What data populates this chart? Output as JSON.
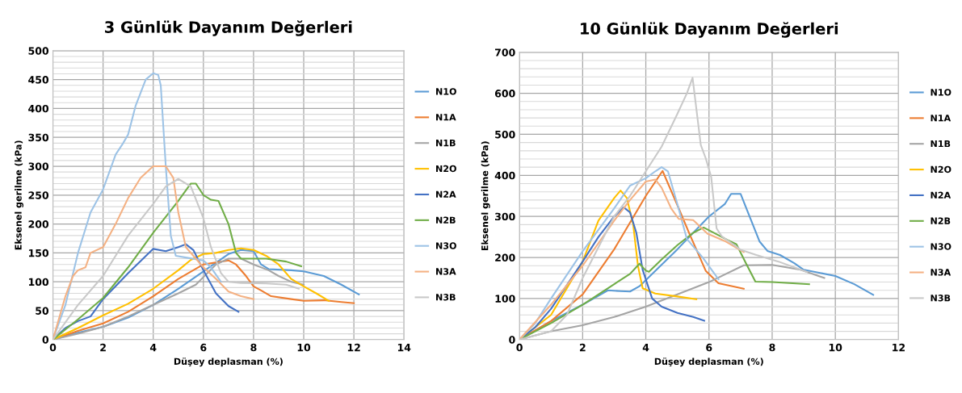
{
  "chart_data": [
    {
      "type": "line",
      "title": "3 Günlük Dayanım Değerleri",
      "xlabel": "Düşey deplasman (%)",
      "ylabel": "Eksenel gerilme (kPa)",
      "xlim": [
        0,
        14
      ],
      "ylim": [
        0,
        500
      ],
      "xticks": [
        0,
        2,
        4,
        6,
        8,
        10,
        12,
        14
      ],
      "yticks": [
        0,
        50,
        100,
        150,
        200,
        250,
        300,
        350,
        400,
        450,
        500
      ],
      "grid": true,
      "legend": "right",
      "marker": "none",
      "line_style": "solid",
      "series": [
        {
          "name": "N1O",
          "color": "#5b9bd5",
          "x": [
            0,
            1,
            2,
            3,
            4,
            5,
            6,
            7,
            7.5,
            8,
            8.3,
            8.6,
            9.5,
            10,
            10.8,
            11.5,
            12.2
          ],
          "values": [
            0,
            12,
            22,
            38,
            60,
            88,
            118,
            148,
            155,
            153,
            130,
            122,
            120,
            118,
            110,
            95,
            78
          ]
        },
        {
          "name": "N1A",
          "color": "#ed7d31",
          "x": [
            0,
            1,
            2,
            3,
            4,
            5,
            6,
            7,
            7.3,
            7.7,
            8,
            8.3,
            8.7,
            9.5,
            10,
            10.8,
            11.5,
            12
          ],
          "values": [
            0,
            15,
            28,
            48,
            75,
            105,
            130,
            137,
            130,
            110,
            92,
            85,
            75,
            70,
            67,
            68,
            65,
            63
          ]
        },
        {
          "name": "N1B",
          "color": "#a5a5a5",
          "x": [
            0,
            1,
            2,
            3,
            4,
            5,
            5.7,
            6.5,
            7,
            7.5,
            8,
            8.6,
            9,
            9.5,
            10
          ],
          "values": [
            0,
            10,
            22,
            40,
            60,
            80,
            95,
            130,
            140,
            140,
            130,
            120,
            110,
            100,
            95
          ]
        },
        {
          "name": "N2O",
          "color": "#ffc000",
          "x": [
            0,
            1,
            2,
            3,
            4,
            5,
            5.5,
            6,
            6.5,
            7,
            7.5,
            8,
            8.5,
            9,
            9.5,
            10,
            10.5,
            11
          ],
          "values": [
            0,
            20,
            42,
            62,
            88,
            120,
            138,
            148,
            150,
            155,
            158,
            155,
            145,
            130,
            105,
            92,
            80,
            67
          ]
        },
        {
          "name": "N2A",
          "color": "#4472c4",
          "x": [
            0,
            0.5,
            1,
            1.5,
            2,
            3,
            4,
            4.5,
            5,
            5.3,
            5.6,
            6,
            6.5,
            7,
            7.4
          ],
          "values": [
            0,
            20,
            32,
            40,
            70,
            115,
            157,
            153,
            160,
            165,
            155,
            120,
            80,
            58,
            48
          ]
        },
        {
          "name": "N2B",
          "color": "#70ad47",
          "x": [
            0,
            1,
            2,
            3,
            4,
            5,
            5.5,
            5.7,
            6,
            6.3,
            6.6,
            7,
            7.3,
            7.5,
            8.5,
            9.3,
            9.9
          ],
          "values": [
            0,
            35,
            72,
            125,
            185,
            240,
            270,
            270,
            250,
            242,
            240,
            200,
            150,
            140,
            140,
            135,
            127
          ]
        },
        {
          "name": "N3O",
          "color": "#9dc3e6",
          "x": [
            0,
            0.5,
            1,
            1.5,
            2,
            2.5,
            2.8,
            3,
            3.3,
            3.7,
            4,
            4.2,
            4.3,
            4.5,
            4.7,
            4.9,
            5.3,
            6,
            6.3,
            6.7
          ],
          "values": [
            0,
            60,
            150,
            220,
            260,
            320,
            340,
            355,
            405,
            450,
            461,
            458,
            440,
            300,
            180,
            145,
            142,
            137,
            125,
            100
          ]
        },
        {
          "name": "N3A",
          "color": "#f4b183",
          "x": [
            0,
            0.5,
            0.8,
            1,
            1.3,
            1.5,
            2,
            2.5,
            3,
            3.5,
            4,
            4.5,
            4.8,
            5,
            5.3,
            5.7,
            6,
            6.5,
            7,
            7.5,
            8
          ],
          "values": [
            0,
            75,
            110,
            120,
            125,
            150,
            160,
            200,
            245,
            280,
            300,
            300,
            280,
            220,
            160,
            140,
            125,
            105,
            83,
            75,
            70
          ]
        },
        {
          "name": "N3B",
          "color": "#c9c9c9",
          "x": [
            0,
            1,
            2,
            3,
            4,
            4.5,
            5,
            5.5,
            6,
            6.3,
            6.7,
            7,
            7.5,
            8.5,
            9.3,
            9.8
          ],
          "values": [
            0,
            60,
            110,
            180,
            235,
            265,
            278,
            265,
            210,
            160,
            115,
            100,
            98,
            97,
            95,
            88
          ]
        }
      ]
    },
    {
      "type": "line",
      "title": "10 Günlük Dayanım Değerleri",
      "xlabel": "Düşey deplasman (%)",
      "ylabel": "Eksenel gerilme (kPa)",
      "xlim": [
        0,
        12
      ],
      "ylim": [
        0,
        700
      ],
      "xticks": [
        0,
        2,
        4,
        6,
        8,
        10,
        12
      ],
      "yticks": [
        0,
        100,
        200,
        300,
        400,
        500,
        600,
        700
      ],
      "grid": true,
      "legend": "right",
      "marker": "none",
      "line_style": "solid",
      "series": [
        {
          "name": "N1O",
          "color": "#5b9bd5",
          "x": [
            0,
            1,
            2,
            2.8,
            3.2,
            3.5,
            3.8,
            4.2,
            5,
            5.5,
            6,
            6.5,
            6.7,
            7,
            7.6,
            7.85,
            8.25,
            8.7,
            9,
            10,
            10.6,
            11.2
          ],
          "values": [
            0,
            45,
            85,
            120,
            118,
            117,
            130,
            160,
            220,
            260,
            300,
            330,
            355,
            355,
            239,
            216,
            206,
            186,
            170,
            155,
            135,
            109
          ]
        },
        {
          "name": "N1A",
          "color": "#ed7d31",
          "x": [
            0,
            1,
            2,
            3,
            4,
            4.53,
            5.04,
            5.38,
            5.9,
            6.3,
            7.1
          ],
          "values": [
            0,
            45,
            110,
            220,
            350,
            411,
            320,
            258,
            167,
            137,
            124
          ]
        },
        {
          "name": "N1B",
          "color": "#a5a5a5",
          "x": [
            0,
            1,
            2,
            3,
            4,
            5,
            6,
            7.1,
            8,
            8.9,
            9.65
          ],
          "values": [
            0,
            20,
            35,
            55,
            80,
            110,
            140,
            181,
            182,
            170,
            150
          ]
        },
        {
          "name": "N2O",
          "color": "#ffc000",
          "x": [
            0,
            1,
            2,
            2.5,
            3,
            3.2,
            3.4,
            3.6,
            3.75,
            3.9,
            4.3,
            5,
            5.6
          ],
          "values": [
            0,
            60,
            190,
            290,
            345,
            363,
            345,
            280,
            180,
            125,
            112,
            105,
            98
          ]
        },
        {
          "name": "N2A",
          "color": "#4472c4",
          "x": [
            0,
            0.5,
            1,
            2,
            2.5,
            3,
            3.3,
            3.5,
            3.7,
            3.9,
            4.2,
            4.5,
            5,
            5.5,
            5.85
          ],
          "values": [
            0,
            30,
            75,
            190,
            250,
            300,
            322,
            310,
            260,
            170,
            100,
            80,
            65,
            55,
            46
          ]
        },
        {
          "name": "N2B",
          "color": "#70ad47",
          "x": [
            0,
            1,
            2,
            3,
            3.5,
            3.8,
            4,
            4.1,
            4.5,
            5,
            5.5,
            5.83,
            6.6,
            6.87,
            7.17,
            7.47,
            8,
            9.17
          ],
          "values": [
            0,
            40,
            85,
            135,
            160,
            185,
            168,
            165,
            195,
            230,
            260,
            273,
            242,
            232,
            186,
            141,
            140,
            135
          ]
        },
        {
          "name": "N3O",
          "color": "#9dc3e6",
          "x": [
            0,
            0.5,
            1,
            2,
            3,
            3.5,
            4,
            4.3,
            4.5,
            4.7,
            5,
            5.3,
            5.8,
            6.3
          ],
          "values": [
            0,
            40,
            100,
            215,
            320,
            375,
            393,
            410,
            420,
            410,
            330,
            245,
            200,
            147
          ]
        },
        {
          "name": "N3A",
          "color": "#f4b183",
          "x": [
            0,
            1,
            2,
            3,
            3.5,
            4,
            4.3,
            4.5,
            4.8,
            5.04,
            5.5,
            5.95,
            6.5,
            7.1
          ],
          "values": [
            0,
            85,
            180,
            290,
            340,
            385,
            390,
            370,
            320,
            294,
            291,
            258,
            240,
            213
          ]
        },
        {
          "name": "N3B",
          "color": "#c9c9c9",
          "x": [
            0,
            1,
            1.5,
            2,
            3,
            3.5,
            4,
            4.5,
            5,
            5.3,
            5.48,
            5.74,
            5.9,
            6.07,
            6.24,
            6.4,
            7,
            7.5,
            8.2,
            8.8,
            9.1
          ],
          "values": [
            0,
            20,
            60,
            150,
            300,
            350,
            410,
            470,
            550,
            600,
            638,
            474,
            441,
            396,
            271,
            252,
            219,
            206,
            190,
            173,
            165
          ]
        }
      ]
    }
  ]
}
